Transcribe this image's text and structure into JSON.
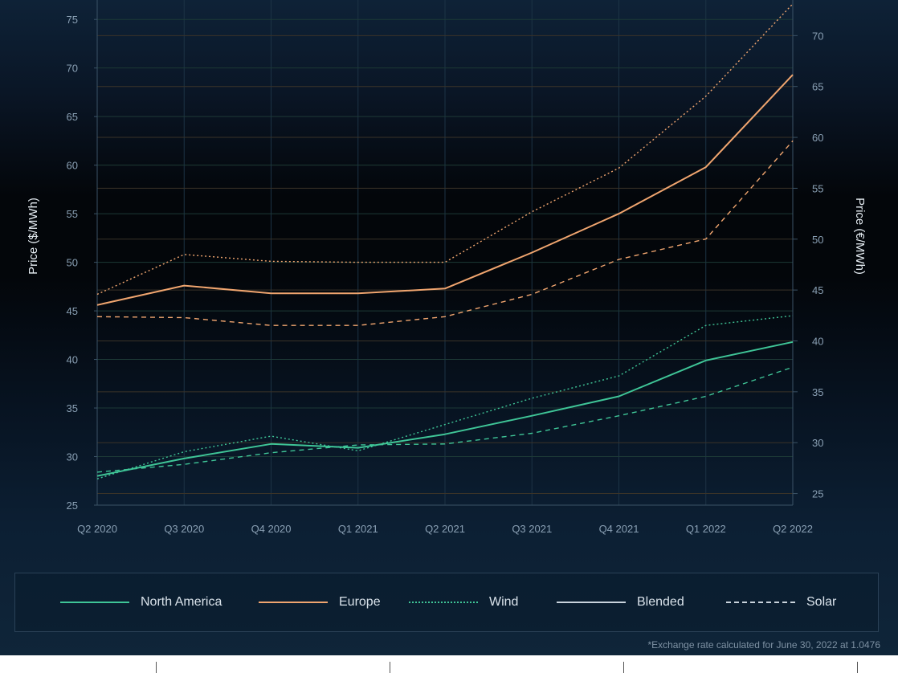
{
  "chart_data": {
    "type": "line",
    "categories": [
      "Q2 2020",
      "Q3 2020",
      "Q4 2020",
      "Q1 2021",
      "Q2 2021",
      "Q3 2021",
      "Q4 2021",
      "Q1 2022",
      "Q2 2022"
    ],
    "ylabel": "Price ($/MWh)",
    "y2label": "Price (€/MWh)",
    "ylim": [
      25,
      77
    ],
    "yticks": [
      25,
      30,
      35,
      40,
      45,
      50,
      55,
      60,
      65,
      70,
      75
    ],
    "y2lim": [
      23.86,
      73.5
    ],
    "y2ticks": [
      25,
      30,
      35,
      40,
      45,
      50,
      55,
      60,
      65,
      70
    ],
    "grid": true,
    "legend_position": "bottom",
    "series": [
      {
        "name": "North America",
        "region": "North America",
        "kind": "Blended",
        "values": [
          28.0,
          29.8,
          31.3,
          30.9,
          32.3,
          34.2,
          36.2,
          39.9,
          41.8
        ]
      },
      {
        "name": "North America",
        "region": "North America",
        "kind": "Wind",
        "values": [
          27.7,
          30.5,
          32.1,
          30.6,
          33.3,
          36.0,
          38.3,
          43.5,
          44.5
        ]
      },
      {
        "name": "North America",
        "region": "North America",
        "kind": "Solar",
        "values": [
          28.4,
          29.2,
          30.4,
          31.2,
          31.3,
          32.4,
          34.2,
          36.2,
          39.2
        ]
      },
      {
        "name": "Europe",
        "region": "Europe",
        "kind": "Blended",
        "values": [
          45.6,
          47.6,
          46.8,
          46.8,
          47.3,
          51.0,
          55.0,
          59.8,
          69.3
        ]
      },
      {
        "name": "Europe",
        "region": "Europe",
        "kind": "Wind",
        "values": [
          46.7,
          50.8,
          50.1,
          50.0,
          50.0,
          55.2,
          59.7,
          67.1,
          76.6
        ]
      },
      {
        "name": "Europe",
        "region": "Europe",
        "kind": "Solar",
        "values": [
          44.4,
          44.3,
          43.5,
          43.5,
          44.4,
          46.7,
          50.3,
          52.4,
          62.5
        ]
      }
    ],
    "colors": {
      "North America": "#3fc597",
      "Europe": "#f0a56f",
      "Blended": "#c9d3dc"
    },
    "dash_styles": {
      "Blended": "solid",
      "Wind": "dotted",
      "Solar": "dashed"
    },
    "legend": [
      "North America",
      "Europe",
      "Wind",
      "Blended",
      "Solar"
    ]
  },
  "footnote": "*Exchange rate calculated for June 30, 2022 at 1.0476"
}
